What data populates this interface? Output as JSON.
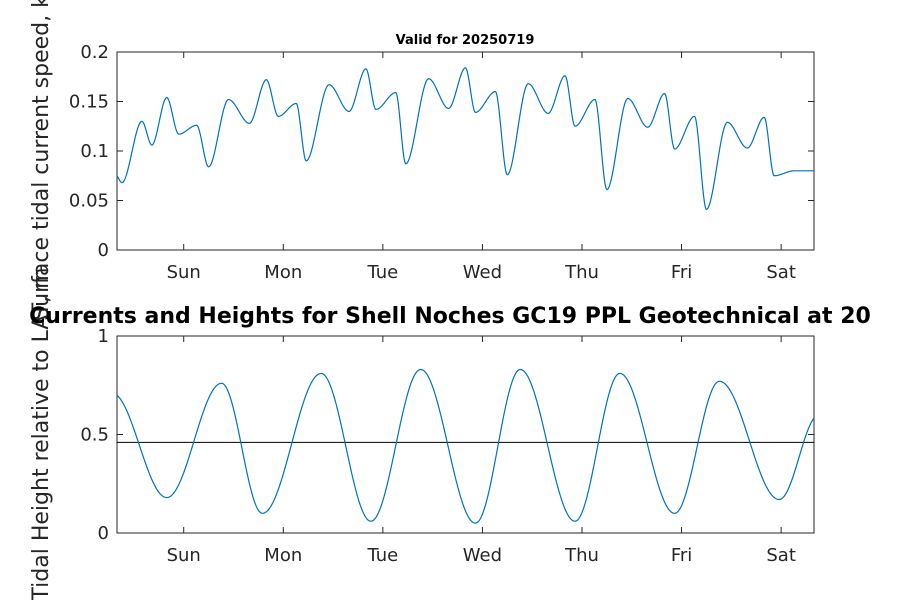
{
  "chart_data": [
    {
      "type": "line",
      "title": "Valid for 20250719",
      "ylabel": "Surface tidal current speed, kn",
      "xlabel": "",
      "x_ticks": [
        "Sun",
        "Mon",
        "Tue",
        "Wed",
        "Thu",
        "Fri",
        "Sat"
      ],
      "x_tick_positions": [
        0.67,
        1.67,
        2.67,
        3.67,
        4.67,
        5.67,
        6.67
      ],
      "xlim": [
        0,
        7
      ],
      "ylim": [
        0,
        0.2
      ],
      "y_ticks": [
        0,
        0.05,
        0.1,
        0.15,
        0.2
      ],
      "y_tick_labels": [
        "0",
        "0.05",
        "0.1",
        "0.15",
        "0.2"
      ],
      "grid": false,
      "series": [
        {
          "color": "#0072bd",
          "x": [
            0,
            0.05,
            0.25,
            0.35,
            0.5,
            0.62,
            0.8,
            0.92,
            1.12,
            1.33,
            1.5,
            1.62,
            1.8,
            1.9,
            2.13,
            2.33,
            2.5,
            2.6,
            2.8,
            2.9,
            3.13,
            3.33,
            3.5,
            3.6,
            3.8,
            3.92,
            4.13,
            4.33,
            4.5,
            4.6,
            4.8,
            4.92,
            5.13,
            5.33,
            5.5,
            5.6,
            5.8,
            5.92,
            6.13,
            6.33,
            6.5,
            6.6,
            6.8,
            6.93,
            7.0
          ],
          "values": [
            0.075,
            0.068,
            0.13,
            0.106,
            0.154,
            0.117,
            0.126,
            0.084,
            0.152,
            0.128,
            0.172,
            0.135,
            0.148,
            0.09,
            0.167,
            0.14,
            0.183,
            0.142,
            0.159,
            0.087,
            0.173,
            0.143,
            0.184,
            0.139,
            0.16,
            0.076,
            0.168,
            0.138,
            0.176,
            0.125,
            0.152,
            0.061,
            0.153,
            0.124,
            0.158,
            0.102,
            0.135,
            0.041,
            0.129,
            0.103,
            0.134,
            0.075,
            0.08,
            0.08,
            0.08
          ]
        }
      ]
    },
    {
      "type": "line",
      "title": "Currents and Heights for Shell Noches   GC19 PPL  Geotechnical at 20",
      "ylabel": "Tidal Height relative to LAT, m",
      "xlabel": "",
      "x_ticks": [
        "Sun",
        "Mon",
        "Tue",
        "Wed",
        "Thu",
        "Fri",
        "Sat"
      ],
      "x_tick_positions": [
        0.67,
        1.67,
        2.67,
        3.67,
        4.67,
        5.67,
        6.67
      ],
      "xlim": [
        0,
        7
      ],
      "ylim": [
        0,
        1
      ],
      "y_ticks": [
        0,
        0.5,
        1
      ],
      "y_tick_labels": [
        "0",
        "0.5",
        "1"
      ],
      "grid": false,
      "reference_line": 0.46,
      "series": [
        {
          "color": "#0072bd",
          "wave": {
            "period_days": 1.0,
            "max_times": [
              -0.05,
              1.05,
              2.05,
              3.05,
              4.05,
              5.05,
              6.05,
              7.05
            ],
            "max_values": [
              0.71,
              0.76,
              0.81,
              0.83,
              0.83,
              0.81,
              0.77,
              0.6
            ],
            "min_times": [
              0.5,
              1.46,
              2.55,
              3.6,
              4.6,
              5.6,
              6.65
            ],
            "min_values": [
              0.18,
              0.1,
              0.06,
              0.05,
              0.06,
              0.1,
              0.17
            ]
          }
        }
      ]
    }
  ]
}
